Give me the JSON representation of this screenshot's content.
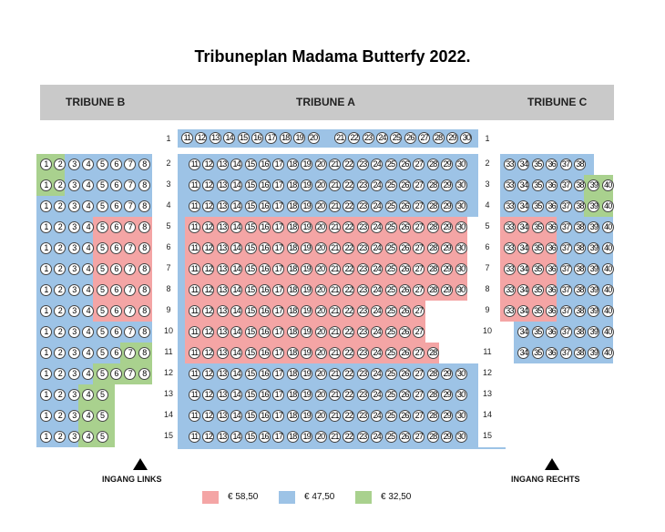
{
  "title": "Tribuneplan Madama Butterfy 2022.",
  "headers": {
    "tribune_b": "TRIBUNE B",
    "tribune_a": "TRIBUNE A",
    "tribune_c": "TRIBUNE C"
  },
  "colors": {
    "red": "#f4a5a5",
    "blue": "#9dc3e6",
    "green": "#a9d18e",
    "header": "#c9c9c9"
  },
  "legend": [
    {
      "label": "€ 58,50",
      "color": "red"
    },
    {
      "label": "€ 47,50",
      "color": "blue"
    },
    {
      "label": "€ 32,50",
      "color": "green"
    }
  ],
  "entrances": {
    "left": "INGANG LINKS",
    "right": "INGANG RECHTS"
  },
  "sections": {
    "tribune_b": [
      {
        "row": 2,
        "seats": [
          1,
          2,
          3,
          4,
          5,
          6,
          7,
          8
        ],
        "colors": [
          "green",
          "green",
          "blue",
          "blue",
          "blue",
          "blue",
          "blue",
          "blue"
        ]
      },
      {
        "row": 3,
        "seats": [
          1,
          2,
          3,
          4,
          5,
          6,
          7,
          8
        ],
        "colors": [
          "green",
          "green",
          "blue",
          "blue",
          "blue",
          "blue",
          "blue",
          "blue"
        ]
      },
      {
        "row": 4,
        "seats": [
          1,
          2,
          3,
          4,
          5,
          6,
          7,
          8
        ],
        "colors": [
          "blue",
          "blue",
          "blue",
          "blue",
          "blue",
          "blue",
          "blue",
          "blue"
        ]
      },
      {
        "row": 5,
        "seats": [
          1,
          2,
          3,
          4,
          5,
          6,
          7,
          8
        ],
        "colors": [
          "blue",
          "blue",
          "blue",
          "blue",
          "red",
          "red",
          "red",
          "red"
        ]
      },
      {
        "row": 6,
        "seats": [
          1,
          2,
          3,
          4,
          5,
          6,
          7,
          8
        ],
        "colors": [
          "blue",
          "blue",
          "blue",
          "blue",
          "red",
          "red",
          "red",
          "red"
        ]
      },
      {
        "row": 7,
        "seats": [
          1,
          2,
          3,
          4,
          5,
          6,
          7,
          8
        ],
        "colors": [
          "blue",
          "blue",
          "blue",
          "blue",
          "red",
          "red",
          "red",
          "red"
        ]
      },
      {
        "row": 8,
        "seats": [
          1,
          2,
          3,
          4,
          5,
          6,
          7,
          8
        ],
        "colors": [
          "blue",
          "blue",
          "blue",
          "blue",
          "red",
          "red",
          "red",
          "red"
        ]
      },
      {
        "row": 9,
        "seats": [
          1,
          2,
          3,
          4,
          5,
          6,
          7,
          8
        ],
        "colors": [
          "blue",
          "blue",
          "blue",
          "blue",
          "red",
          "red",
          "red",
          "red"
        ]
      },
      {
        "row": 10,
        "seats": [
          1,
          2,
          3,
          4,
          5,
          6,
          7,
          8
        ],
        "colors": [
          "blue",
          "blue",
          "blue",
          "blue",
          "blue",
          "blue",
          "blue",
          "blue"
        ]
      },
      {
        "row": 11,
        "seats": [
          1,
          2,
          3,
          4,
          5,
          6,
          7,
          8
        ],
        "colors": [
          "blue",
          "blue",
          "blue",
          "blue",
          "blue",
          "blue",
          "green",
          "green"
        ]
      },
      {
        "row": 12,
        "seats": [
          1,
          2,
          3,
          4,
          5,
          6,
          7,
          8
        ],
        "colors": [
          "blue",
          "blue",
          "blue",
          "blue",
          "green",
          "green",
          "green",
          "green"
        ]
      },
      {
        "row": 13,
        "seats": [
          1,
          2,
          3,
          4,
          5
        ],
        "colors": [
          "blue",
          "blue",
          "blue",
          "green",
          "green"
        ]
      },
      {
        "row": 14,
        "seats": [
          1,
          2,
          3,
          4,
          5
        ],
        "colors": [
          "blue",
          "blue",
          "blue",
          "green",
          "green"
        ]
      },
      {
        "row": 15,
        "seats": [
          1,
          2,
          3,
          4,
          5
        ],
        "colors": [
          "blue",
          "blue",
          "blue",
          "green",
          "green"
        ]
      }
    ],
    "tribune_a": [
      {
        "row": 1,
        "seats": [
          11,
          12,
          13,
          14,
          15,
          16,
          17,
          18,
          19,
          20,
          null,
          21,
          22,
          23,
          24,
          25,
          26,
          27,
          28,
          29,
          30
        ],
        "red_from": null,
        "red_to": null
      },
      {
        "row": 2,
        "seats": [
          11,
          12,
          13,
          14,
          15,
          16,
          17,
          18,
          19,
          20,
          21,
          22,
          23,
          24,
          25,
          26,
          27,
          28,
          29,
          30
        ],
        "red_from": null,
        "red_to": null
      },
      {
        "row": 3,
        "seats": [
          11,
          12,
          13,
          14,
          15,
          16,
          17,
          18,
          19,
          20,
          21,
          22,
          23,
          24,
          25,
          26,
          27,
          28,
          29,
          30
        ],
        "red_from": null,
        "red_to": null
      },
      {
        "row": 4,
        "seats": [
          11,
          12,
          13,
          14,
          15,
          16,
          17,
          18,
          19,
          20,
          21,
          22,
          23,
          24,
          25,
          26,
          27,
          28,
          29,
          30
        ],
        "red_from": null,
        "red_to": null
      },
      {
        "row": 5,
        "seats": [
          11,
          12,
          13,
          14,
          15,
          16,
          17,
          18,
          19,
          20,
          21,
          22,
          23,
          24,
          25,
          26,
          27,
          28,
          29,
          30
        ],
        "red_from": 11,
        "red_to": 30
      },
      {
        "row": 6,
        "seats": [
          11,
          12,
          13,
          14,
          15,
          16,
          17,
          18,
          19,
          20,
          21,
          22,
          23,
          24,
          25,
          26,
          27,
          28,
          29,
          30
        ],
        "red_from": 11,
        "red_to": 30
      },
      {
        "row": 7,
        "seats": [
          11,
          12,
          13,
          14,
          15,
          16,
          17,
          18,
          19,
          20,
          21,
          22,
          23,
          24,
          25,
          26,
          27,
          28,
          29,
          30
        ],
        "red_from": 11,
        "red_to": 30
      },
      {
        "row": 8,
        "seats": [
          11,
          12,
          13,
          14,
          15,
          16,
          17,
          18,
          19,
          20,
          21,
          22,
          23,
          24,
          25,
          26,
          27,
          28,
          29,
          30
        ],
        "red_from": 11,
        "red_to": 30
      },
      {
        "row": 9,
        "seats": [
          11,
          12,
          13,
          14,
          15,
          16,
          17,
          18,
          19,
          20,
          21,
          22,
          23,
          24,
          25,
          26,
          27
        ],
        "red_from": 11,
        "red_to": 27
      },
      {
        "row": 10,
        "seats": [
          11,
          12,
          13,
          14,
          15,
          16,
          17,
          18,
          19,
          20,
          21,
          22,
          23,
          24,
          25,
          26,
          27
        ],
        "red_from": 11,
        "red_to": 27
      },
      {
        "row": 11,
        "seats": [
          11,
          12,
          13,
          14,
          15,
          16,
          17,
          18,
          19,
          20,
          21,
          22,
          23,
          24,
          25,
          26,
          27,
          28
        ],
        "red_from": 11,
        "red_to": 28
      },
      {
        "row": 12,
        "seats": [
          11,
          12,
          13,
          14,
          15,
          16,
          17,
          18,
          19,
          20,
          21,
          22,
          23,
          24,
          25,
          26,
          27,
          28,
          29,
          30
        ],
        "red_from": null,
        "red_to": null
      },
      {
        "row": 13,
        "seats": [
          11,
          12,
          13,
          14,
          15,
          16,
          17,
          18,
          19,
          20,
          21,
          22,
          23,
          24,
          25,
          26,
          27,
          28,
          29,
          30
        ],
        "red_from": null,
        "red_to": null
      },
      {
        "row": 14,
        "seats": [
          11,
          12,
          13,
          14,
          15,
          16,
          17,
          18,
          19,
          20,
          21,
          22,
          23,
          24,
          25,
          26,
          27,
          28,
          29,
          30
        ],
        "red_from": null,
        "red_to": null
      },
      {
        "row": 15,
        "seats": [
          11,
          12,
          13,
          14,
          15,
          16,
          17,
          18,
          19,
          20,
          21,
          22,
          23,
          24,
          25,
          26,
          27,
          28,
          29,
          30
        ],
        "red_from": null,
        "red_to": null
      }
    ],
    "tribune_c": [
      {
        "row": 2,
        "seats": [
          33,
          34,
          35,
          36,
          37,
          38
        ],
        "colors": [
          "blue",
          "blue",
          "blue",
          "blue",
          "blue",
          "blue"
        ]
      },
      {
        "row": 3,
        "seats": [
          33,
          34,
          35,
          36,
          37,
          38,
          39,
          40
        ],
        "colors": [
          "blue",
          "blue",
          "blue",
          "blue",
          "blue",
          "blue",
          "green",
          "green"
        ]
      },
      {
        "row": 4,
        "seats": [
          33,
          34,
          35,
          36,
          37,
          38,
          39,
          40
        ],
        "colors": [
          "blue",
          "blue",
          "blue",
          "blue",
          "blue",
          "blue",
          "green",
          "green"
        ]
      },
      {
        "row": 5,
        "seats": [
          33,
          34,
          35,
          36,
          37,
          38,
          39,
          40
        ],
        "colors": [
          "red",
          "red",
          "red",
          "red",
          "blue",
          "blue",
          "blue",
          "blue"
        ]
      },
      {
        "row": 6,
        "seats": [
          33,
          34,
          35,
          36,
          37,
          38,
          39,
          40
        ],
        "colors": [
          "red",
          "red",
          "red",
          "red",
          "blue",
          "blue",
          "blue",
          "blue"
        ]
      },
      {
        "row": 7,
        "seats": [
          33,
          34,
          35,
          36,
          37,
          38,
          39,
          40
        ],
        "colors": [
          "red",
          "red",
          "red",
          "red",
          "blue",
          "blue",
          "blue",
          "blue"
        ]
      },
      {
        "row": 8,
        "seats": [
          33,
          34,
          35,
          36,
          37,
          38,
          39,
          40
        ],
        "colors": [
          "red",
          "red",
          "red",
          "red",
          "blue",
          "blue",
          "blue",
          "blue"
        ]
      },
      {
        "row": 9,
        "seats": [
          33,
          34,
          35,
          36,
          37,
          38,
          39,
          40
        ],
        "colors": [
          "red",
          "red",
          "red",
          "red",
          "blue",
          "blue",
          "blue",
          "blue"
        ]
      },
      {
        "row": 10,
        "seats": [
          34,
          35,
          36,
          37,
          38,
          39,
          40
        ],
        "colors": [
          "blue",
          "blue",
          "blue",
          "blue",
          "blue",
          "blue",
          "blue"
        ]
      },
      {
        "row": 11,
        "seats": [
          34,
          35,
          36,
          37,
          38,
          39,
          40
        ],
        "colors": [
          "blue",
          "blue",
          "blue",
          "blue",
          "blue",
          "blue",
          "blue"
        ]
      }
    ]
  }
}
